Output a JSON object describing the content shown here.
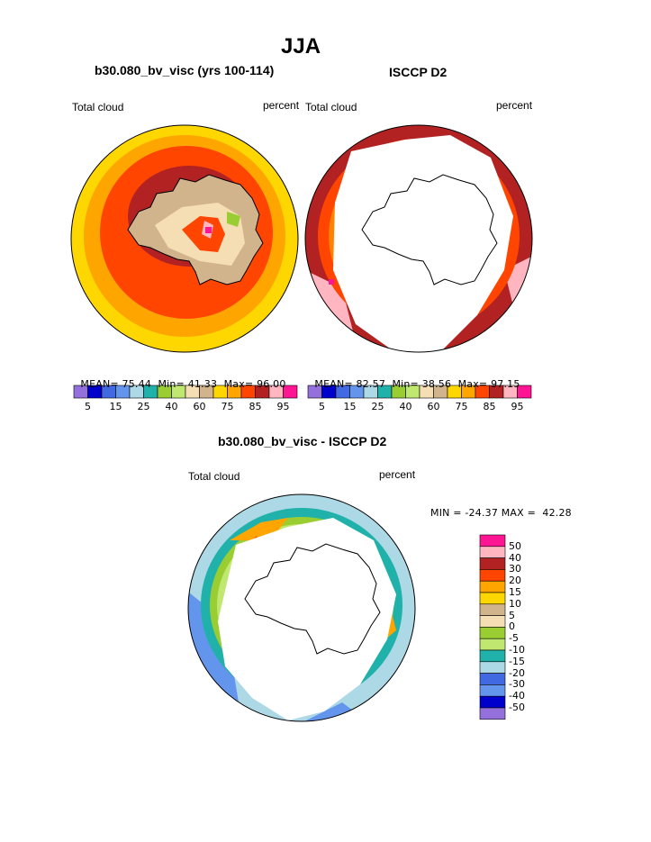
{
  "page_title": "JJA",
  "panels": [
    {
      "title": "b30.080_bv_visc (yrs 100-114)",
      "variable_label": "Total cloud",
      "units": "percent",
      "stats": {
        "mean_label": "MEAN=",
        "mean": "75.44",
        "min_label": "Min=",
        "min": "41.33",
        "max_label": "Max=",
        "max": "96.00"
      }
    },
    {
      "title": "ISCCP D2",
      "variable_label": "Total cloud",
      "units": "percent",
      "stats": {
        "mean_label": "MEAN=",
        "mean": "82.57",
        "min_label": "Min=",
        "min": "38.56",
        "max_label": "Max=",
        "max": "97.15"
      }
    },
    {
      "title": "b30.080_bv_visc - ISCCP D2",
      "variable_label": "Total cloud",
      "units": "percent",
      "stats_text": "MIN = -24.37 MAX =  42.28"
    }
  ],
  "colorbar_main": {
    "colors": [
      "#9370DB",
      "#0000CD",
      "#4169E1",
      "#6495ED",
      "#ADD8E6",
      "#20B2AA",
      "#9ACD32",
      "#C0E870",
      "#F5DEB3",
      "#D2B48C",
      "#FFD700",
      "#FFA500",
      "#FF4500",
      "#B22222",
      "#FFB6C1",
      "#FF1493"
    ],
    "tick_labels": [
      "5",
      "15",
      "25",
      "40",
      "60",
      "75",
      "85",
      "95"
    ]
  },
  "colorbar_diff": {
    "colors_top_to_bottom": [
      "#FF1493",
      "#FFB6C1",
      "#B22222",
      "#FF4500",
      "#FFA500",
      "#FFD700",
      "#D2B48C",
      "#F5DEB3",
      "#9ACD32",
      "#C0E870",
      "#20B2AA",
      "#ADD8E6",
      "#4169E1",
      "#6495ED",
      "#0000CD",
      "#9370DB"
    ],
    "tick_labels": [
      "50",
      "40",
      "30",
      "20",
      "15",
      "10",
      "5",
      "0",
      "-5",
      "-10",
      "-15",
      "-20",
      "-30",
      "-40",
      "-50"
    ]
  },
  "icons": [
    "antarctica-coastline-icon"
  ]
}
